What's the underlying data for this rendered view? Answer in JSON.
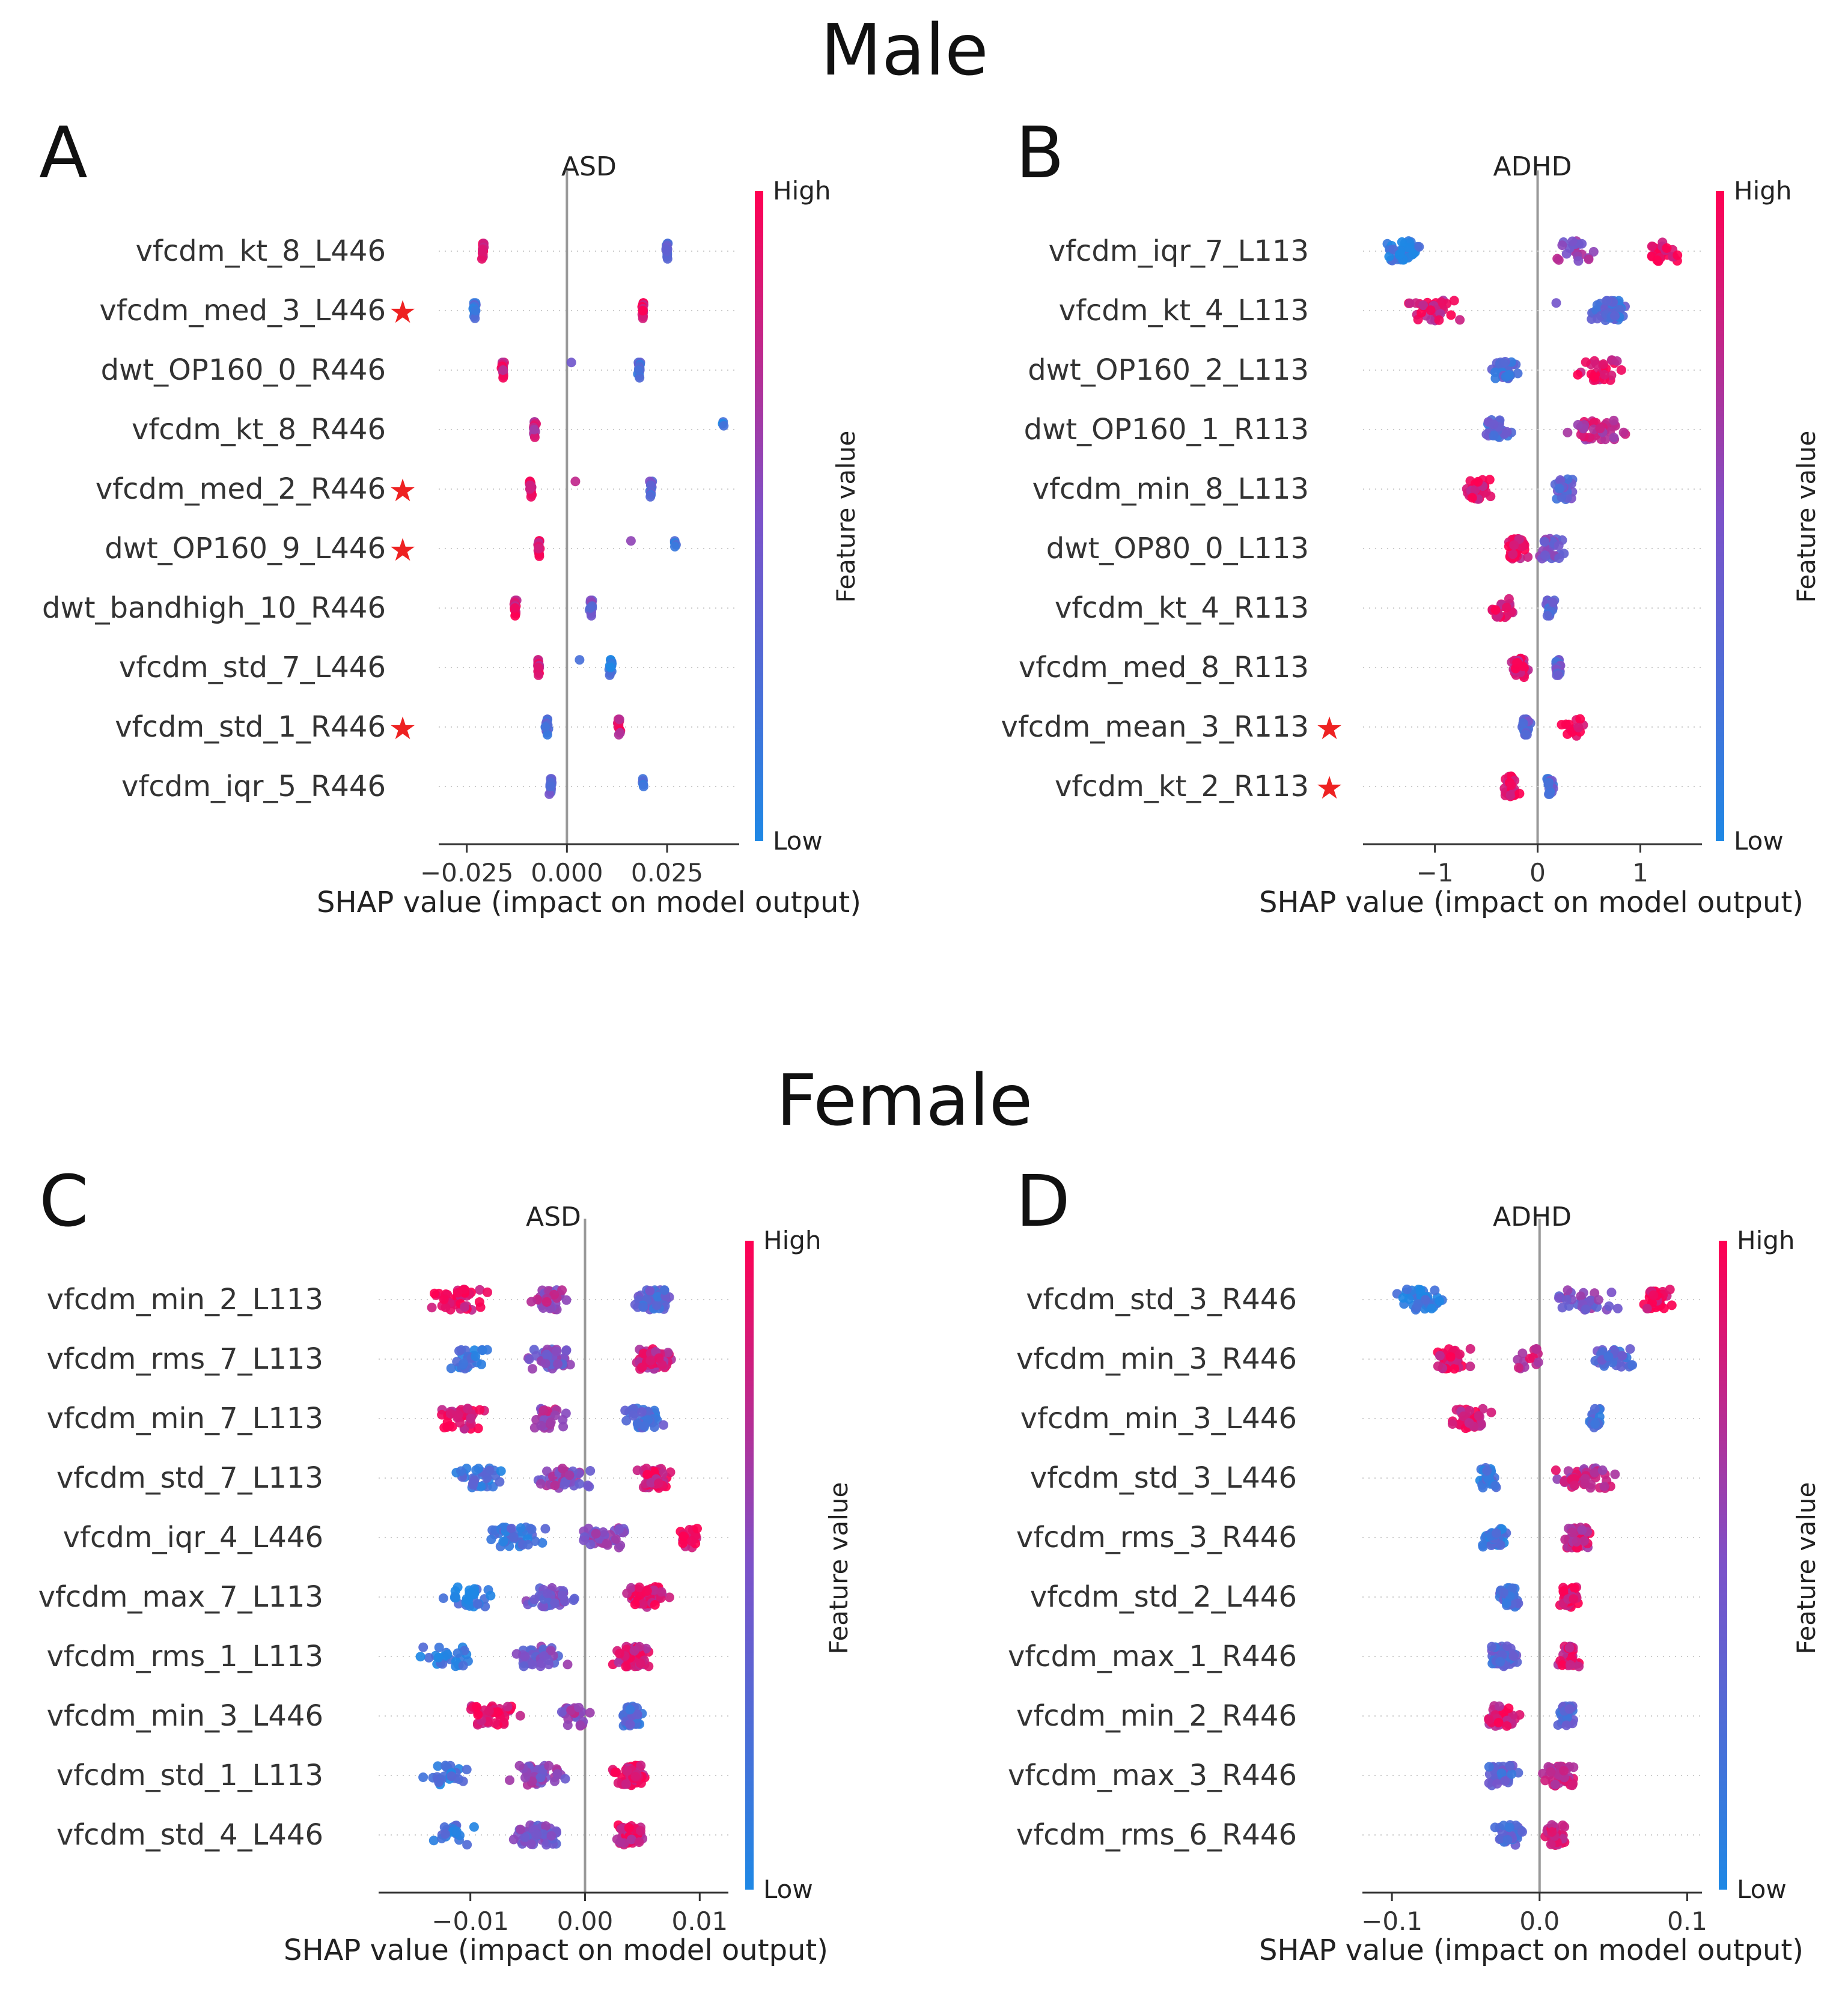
{
  "sections": {
    "male": "Male",
    "female": "Female"
  },
  "colors": {
    "low": "#1E88E5",
    "high": "#FF0052",
    "star": "#EE2222",
    "zero_line": "#999999",
    "grid": "#cccccc"
  },
  "colorbar": {
    "high_label": "High",
    "low_label": "Low",
    "title": "Feature value"
  },
  "chart_data": [
    {
      "type": "scatter",
      "chart_kind": "shap_beeswarm",
      "panel_letter": "A",
      "title": "ASD",
      "xlabel": "SHAP value (impact on model output)",
      "xlim": [
        -0.032,
        0.043
      ],
      "xticks": [
        -0.025,
        0.0,
        0.025
      ],
      "xtick_labels": [
        "−0.025",
        "0.000",
        "0.025"
      ],
      "features": [
        {
          "name": "vfcdm_kt_8_L446",
          "starred": false,
          "clusters": [
            {
              "x": -0.021,
              "c": 0.9,
              "spread": 0.0005,
              "n": 14
            },
            {
              "x": 0.025,
              "c": 0.25,
              "spread": 0.0005,
              "n": 14
            }
          ]
        },
        {
          "name": "vfcdm_med_3_L446",
          "starred": true,
          "clusters": [
            {
              "x": -0.023,
              "c": 0.2,
              "spread": 0.0005,
              "n": 14
            },
            {
              "x": 0.019,
              "c": 0.85,
              "spread": 0.0005,
              "n": 14
            }
          ]
        },
        {
          "name": "dwt_OP160_0_R446",
          "starred": false,
          "clusters": [
            {
              "x": -0.016,
              "c": 0.85,
              "spread": 0.0005,
              "n": 14
            },
            {
              "x": 0.001,
              "c": 0.4,
              "spread": 0.0004,
              "n": 1
            },
            {
              "x": 0.018,
              "c": 0.25,
              "spread": 0.0005,
              "n": 14
            }
          ]
        },
        {
          "name": "vfcdm_kt_8_R446",
          "starred": false,
          "clusters": [
            {
              "x": -0.008,
              "c": 0.8,
              "spread": 0.0005,
              "n": 14
            },
            {
              "x": 0.039,
              "c": 0.05,
              "spread": 0.0004,
              "n": 3
            }
          ]
        },
        {
          "name": "vfcdm_med_2_R446",
          "starred": true,
          "clusters": [
            {
              "x": -0.009,
              "c": 0.85,
              "spread": 0.0005,
              "n": 14
            },
            {
              "x": 0.002,
              "c": 0.7,
              "spread": 0.0004,
              "n": 1
            },
            {
              "x": 0.021,
              "c": 0.35,
              "spread": 0.0005,
              "n": 12
            }
          ]
        },
        {
          "name": "dwt_OP160_9_L446",
          "starred": true,
          "clusters": [
            {
              "x": -0.007,
              "c": 0.85,
              "spread": 0.0005,
              "n": 14
            },
            {
              "x": 0.016,
              "c": 0.5,
              "spread": 0.0004,
              "n": 1
            },
            {
              "x": 0.027,
              "c": 0.15,
              "spread": 0.0004,
              "n": 4
            }
          ]
        },
        {
          "name": "dwt_bandhigh_10_R446",
          "starred": false,
          "clusters": [
            {
              "x": -0.013,
              "c": 0.9,
              "spread": 0.0005,
              "n": 14
            },
            {
              "x": 0.006,
              "c": 0.45,
              "spread": 0.0005,
              "n": 14
            }
          ]
        },
        {
          "name": "vfcdm_std_7_L446",
          "starred": false,
          "clusters": [
            {
              "x": -0.007,
              "c": 0.85,
              "spread": 0.0005,
              "n": 14
            },
            {
              "x": 0.003,
              "c": 0.35,
              "spread": 0.0004,
              "n": 1
            },
            {
              "x": 0.011,
              "c": 0.15,
              "spread": 0.0005,
              "n": 14
            }
          ]
        },
        {
          "name": "vfcdm_std_1_R446",
          "starred": true,
          "clusters": [
            {
              "x": -0.005,
              "c": 0.3,
              "spread": 0.0005,
              "n": 14
            },
            {
              "x": 0.013,
              "c": 0.85,
              "spread": 0.0005,
              "n": 10
            }
          ]
        },
        {
          "name": "vfcdm_iqr_5_R446",
          "starred": false,
          "clusters": [
            {
              "x": -0.004,
              "c": 0.3,
              "spread": 0.0005,
              "n": 14
            },
            {
              "x": 0.019,
              "c": 0.15,
              "spread": 0.0004,
              "n": 5
            }
          ]
        }
      ]
    },
    {
      "type": "scatter",
      "chart_kind": "shap_beeswarm",
      "panel_letter": "B",
      "title": "ADHD",
      "xlabel": "SHAP value (impact on model output)",
      "xlim": [
        -1.7,
        1.6
      ],
      "xticks": [
        -1,
        0,
        1
      ],
      "xtick_labels": [
        "−1",
        "0",
        "1"
      ],
      "features": [
        {
          "name": "vfcdm_iqr_7_L113",
          "starred": false,
          "clusters": [
            {
              "x": -1.3,
              "c": 0.1,
              "spread": 0.25,
              "n": 40
            },
            {
              "x": 0.35,
              "c": 0.6,
              "spread": 0.3,
              "n": 22
            },
            {
              "x": 1.2,
              "c": 0.95,
              "spread": 0.2,
              "n": 30
            }
          ]
        },
        {
          "name": "vfcdm_kt_4_L113",
          "starred": false,
          "clusters": [
            {
              "x": -1.0,
              "c": 0.85,
              "spread": 0.35,
              "n": 40
            },
            {
              "x": 0.2,
              "c": 0.3,
              "spread": 0.03,
              "n": 1
            },
            {
              "x": 0.7,
              "c": 0.25,
              "spread": 0.25,
              "n": 45
            }
          ]
        },
        {
          "name": "dwt_OP160_2_L113",
          "starred": false,
          "clusters": [
            {
              "x": -0.3,
              "c": 0.25,
              "spread": 0.18,
              "n": 32
            },
            {
              "x": 0.6,
              "c": 0.9,
              "spread": 0.25,
              "n": 30
            }
          ]
        },
        {
          "name": "dwt_OP160_1_R113",
          "starred": false,
          "clusters": [
            {
              "x": -0.4,
              "c": 0.3,
              "spread": 0.2,
              "n": 28
            },
            {
              "x": 0.55,
              "c": 0.75,
              "spread": 0.4,
              "n": 40
            }
          ]
        },
        {
          "name": "vfcdm_min_8_L113",
          "starred": false,
          "clusters": [
            {
              "x": -0.6,
              "c": 0.9,
              "spread": 0.2,
              "n": 34
            },
            {
              "x": 0.25,
              "c": 0.35,
              "spread": 0.12,
              "n": 32
            }
          ]
        },
        {
          "name": "dwt_OP80_0_L113",
          "starred": false,
          "clusters": [
            {
              "x": -0.2,
              "c": 0.85,
              "spread": 0.15,
              "n": 40
            },
            {
              "x": 0.15,
              "c": 0.45,
              "spread": 0.18,
              "n": 28
            }
          ]
        },
        {
          "name": "vfcdm_kt_4_R113",
          "starred": false,
          "clusters": [
            {
              "x": -0.35,
              "c": 0.9,
              "spread": 0.15,
              "n": 22
            },
            {
              "x": 0.12,
              "c": 0.3,
              "spread": 0.06,
              "n": 20
            }
          ]
        },
        {
          "name": "vfcdm_med_8_R113",
          "starred": false,
          "clusters": [
            {
              "x": -0.18,
              "c": 0.85,
              "spread": 0.1,
              "n": 30
            },
            {
              "x": 0.2,
              "c": 0.35,
              "spread": 0.06,
              "n": 18
            }
          ]
        },
        {
          "name": "vfcdm_mean_3_R113",
          "starred": true,
          "clusters": [
            {
              "x": -0.12,
              "c": 0.35,
              "spread": 0.06,
              "n": 30
            },
            {
              "x": 0.35,
              "c": 0.95,
              "spread": 0.2,
              "n": 14
            }
          ]
        },
        {
          "name": "vfcdm_kt_2_R113",
          "starred": true,
          "clusters": [
            {
              "x": -0.25,
              "c": 0.95,
              "spread": 0.1,
              "n": 28
            },
            {
              "x": 0.12,
              "c": 0.3,
              "spread": 0.05,
              "n": 22
            }
          ]
        }
      ]
    },
    {
      "type": "scatter",
      "chart_kind": "shap_beeswarm",
      "panel_letter": "C",
      "title": "ASD",
      "xlabel": "SHAP value (impact on model output)",
      "xlim": [
        -0.018,
        0.0125
      ],
      "xticks": [
        -0.01,
        0.0,
        0.01
      ],
      "xtick_labels": [
        "−0.01",
        "0.00",
        "0.01"
      ],
      "features": [
        {
          "name": "vfcdm_min_2_L113",
          "starred": false,
          "clusters": [
            {
              "x": -0.011,
              "c": 0.9,
              "spread": 0.003,
              "n": 40
            },
            {
              "x": -0.003,
              "c": 0.65,
              "spread": 0.002,
              "n": 30
            },
            {
              "x": 0.006,
              "c": 0.3,
              "spread": 0.0025,
              "n": 50
            }
          ]
        },
        {
          "name": "vfcdm_rms_7_L113",
          "starred": false,
          "clusters": [
            {
              "x": -0.01,
              "c": 0.15,
              "spread": 0.0025,
              "n": 25
            },
            {
              "x": -0.003,
              "c": 0.45,
              "spread": 0.003,
              "n": 40
            },
            {
              "x": 0.006,
              "c": 0.8,
              "spread": 0.0025,
              "n": 60
            }
          ]
        },
        {
          "name": "vfcdm_min_7_L113",
          "starred": false,
          "clusters": [
            {
              "x": -0.011,
              "c": 0.9,
              "spread": 0.003,
              "n": 40
            },
            {
              "x": -0.003,
              "c": 0.65,
              "spread": 0.002,
              "n": 30
            },
            {
              "x": 0.005,
              "c": 0.25,
              "spread": 0.002,
              "n": 50
            }
          ]
        },
        {
          "name": "vfcdm_std_7_L113",
          "starred": false,
          "clusters": [
            {
              "x": -0.009,
              "c": 0.2,
              "spread": 0.003,
              "n": 30
            },
            {
              "x": -0.002,
              "c": 0.55,
              "spread": 0.003,
              "n": 40
            },
            {
              "x": 0.006,
              "c": 0.85,
              "spread": 0.002,
              "n": 60
            }
          ]
        },
        {
          "name": "vfcdm_iqr_4_L446",
          "starred": false,
          "clusters": [
            {
              "x": -0.006,
              "c": 0.2,
              "spread": 0.003,
              "n": 45
            },
            {
              "x": 0.002,
              "c": 0.55,
              "spread": 0.003,
              "n": 40
            },
            {
              "x": 0.009,
              "c": 0.95,
              "spread": 0.0015,
              "n": 20
            }
          ]
        },
        {
          "name": "vfcdm_max_7_L113",
          "starred": false,
          "clusters": [
            {
              "x": -0.01,
              "c": 0.1,
              "spread": 0.003,
              "n": 30
            },
            {
              "x": -0.003,
              "c": 0.45,
              "spread": 0.003,
              "n": 40
            },
            {
              "x": 0.005,
              "c": 0.85,
              "spread": 0.0025,
              "n": 60
            }
          ]
        },
        {
          "name": "vfcdm_rms_1_L113",
          "starred": false,
          "clusters": [
            {
              "x": -0.012,
              "c": 0.1,
              "spread": 0.003,
              "n": 25
            },
            {
              "x": -0.004,
              "c": 0.45,
              "spread": 0.003,
              "n": 40
            },
            {
              "x": 0.004,
              "c": 0.85,
              "spread": 0.002,
              "n": 55
            }
          ]
        },
        {
          "name": "vfcdm_min_3_L446",
          "starred": false,
          "clusters": [
            {
              "x": -0.008,
              "c": 0.9,
              "spread": 0.003,
              "n": 45
            },
            {
              "x": -0.001,
              "c": 0.6,
              "spread": 0.002,
              "n": 25
            },
            {
              "x": 0.004,
              "c": 0.25,
              "spread": 0.0015,
              "n": 45
            }
          ]
        },
        {
          "name": "vfcdm_std_1_L113",
          "starred": false,
          "clusters": [
            {
              "x": -0.012,
              "c": 0.15,
              "spread": 0.003,
              "n": 25
            },
            {
              "x": -0.004,
              "c": 0.55,
              "spread": 0.003,
              "n": 40
            },
            {
              "x": 0.004,
              "c": 0.9,
              "spread": 0.002,
              "n": 60
            }
          ]
        },
        {
          "name": "vfcdm_std_4_L446",
          "starred": false,
          "clusters": [
            {
              "x": -0.012,
              "c": 0.15,
              "spread": 0.003,
              "n": 20
            },
            {
              "x": -0.004,
              "c": 0.45,
              "spread": 0.003,
              "n": 45
            },
            {
              "x": 0.004,
              "c": 0.85,
              "spread": 0.002,
              "n": 55
            }
          ]
        }
      ]
    },
    {
      "type": "scatter",
      "chart_kind": "shap_beeswarm",
      "panel_letter": "D",
      "title": "ADHD",
      "xlabel": "SHAP value (impact on model output)",
      "xlim": [
        -0.12,
        0.11
      ],
      "xticks": [
        -0.1,
        0.0,
        0.1
      ],
      "xtick_labels": [
        "−0.1",
        "0.0",
        "0.1"
      ],
      "features": [
        {
          "name": "vfcdm_std_3_R446",
          "starred": false,
          "clusters": [
            {
              "x": -0.08,
              "c": 0.1,
              "spread": 0.02,
              "n": 45
            },
            {
              "x": 0.03,
              "c": 0.5,
              "spread": 0.03,
              "n": 35
            },
            {
              "x": 0.08,
              "c": 0.95,
              "spread": 0.012,
              "n": 40
            }
          ]
        },
        {
          "name": "vfcdm_min_3_R446",
          "starred": false,
          "clusters": [
            {
              "x": -0.06,
              "c": 0.9,
              "spread": 0.015,
              "n": 40
            },
            {
              "x": -0.01,
              "c": 0.75,
              "spread": 0.02,
              "n": 14
            },
            {
              "x": 0.05,
              "c": 0.3,
              "spread": 0.02,
              "n": 40
            }
          ]
        },
        {
          "name": "vfcdm_min_3_L446",
          "starred": false,
          "clusters": [
            {
              "x": -0.045,
              "c": 0.85,
              "spread": 0.02,
              "n": 38
            },
            {
              "x": 0.038,
              "c": 0.2,
              "spread": 0.006,
              "n": 20
            }
          ]
        },
        {
          "name": "vfcdm_std_3_L446",
          "starred": false,
          "clusters": [
            {
              "x": -0.035,
              "c": 0.2,
              "spread": 0.01,
              "n": 30
            },
            {
              "x": 0.03,
              "c": 0.75,
              "spread": 0.03,
              "n": 50
            }
          ]
        },
        {
          "name": "vfcdm_rms_3_R446",
          "starred": false,
          "clusters": [
            {
              "x": -0.03,
              "c": 0.15,
              "spread": 0.015,
              "n": 40
            },
            {
              "x": 0.025,
              "c": 0.8,
              "spread": 0.012,
              "n": 50
            }
          ]
        },
        {
          "name": "vfcdm_std_2_L446",
          "starred": false,
          "clusters": [
            {
              "x": -0.02,
              "c": 0.25,
              "spread": 0.01,
              "n": 40
            },
            {
              "x": 0.02,
              "c": 0.9,
              "spread": 0.008,
              "n": 45
            }
          ]
        },
        {
          "name": "vfcdm_max_1_R446",
          "starred": false,
          "clusters": [
            {
              "x": -0.025,
              "c": 0.3,
              "spread": 0.015,
              "n": 40
            },
            {
              "x": 0.02,
              "c": 0.85,
              "spread": 0.008,
              "n": 45
            }
          ]
        },
        {
          "name": "vfcdm_min_2_R446",
          "starred": false,
          "clusters": [
            {
              "x": -0.025,
              "c": 0.85,
              "spread": 0.015,
              "n": 40
            },
            {
              "x": 0.018,
              "c": 0.3,
              "spread": 0.007,
              "n": 40
            }
          ]
        },
        {
          "name": "vfcdm_max_3_R446",
          "starred": false,
          "clusters": [
            {
              "x": -0.025,
              "c": 0.3,
              "spread": 0.015,
              "n": 40
            },
            {
              "x": 0.015,
              "c": 0.75,
              "spread": 0.015,
              "n": 45
            }
          ]
        },
        {
          "name": "vfcdm_rms_6_R446",
          "starred": false,
          "clusters": [
            {
              "x": -0.02,
              "c": 0.3,
              "spread": 0.013,
              "n": 35
            },
            {
              "x": 0.012,
              "c": 0.85,
              "spread": 0.01,
              "n": 40
            }
          ]
        }
      ]
    }
  ]
}
